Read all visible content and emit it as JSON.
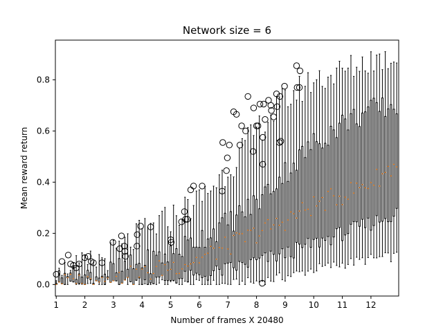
{
  "chart_data": {
    "type": "boxplot",
    "title": "Network size = 6",
    "xlabel": "Number of frames X 20480",
    "ylabel": "Mean reward return",
    "xlim": [
      0.97,
      12.97
    ],
    "ylim": [
      -0.045,
      0.955
    ],
    "xticks": [
      1,
      2,
      3,
      4,
      5,
      6,
      7,
      8,
      9,
      10,
      11,
      12
    ],
    "yticks": [
      0.0,
      0.2,
      0.4,
      0.6,
      0.8
    ],
    "ytick_labels": [
      "0.0",
      "0.2",
      "0.4",
      "0.6",
      "0.8"
    ],
    "box_positions": {
      "start": 1.0,
      "step": 0.1,
      "count": 120
    },
    "grid": false,
    "legend": "none",
    "colors": {
      "box": "#000000",
      "median": "#ff7f0e",
      "outlier": "#000000",
      "background": "#ffffff"
    },
    "whisker_high_profile": {
      "x": [
        1.0,
        2.0,
        3.0,
        4.0,
        5.0,
        6.0,
        7.0,
        8.0,
        9.0,
        10.0,
        11.0,
        12.0,
        12.9
      ],
      "y": [
        0.04,
        0.07,
        0.12,
        0.2,
        0.26,
        0.33,
        0.45,
        0.6,
        0.72,
        0.8,
        0.83,
        0.88,
        0.89
      ]
    },
    "q3_profile": {
      "x": [
        1.0,
        2.0,
        3.0,
        4.0,
        5.0,
        6.0,
        7.0,
        8.0,
        9.0,
        10.0,
        11.0,
        12.0,
        12.9
      ],
      "y": [
        0.02,
        0.03,
        0.05,
        0.08,
        0.12,
        0.18,
        0.24,
        0.32,
        0.44,
        0.55,
        0.63,
        0.68,
        0.7
      ]
    },
    "median_profile": {
      "x": [
        1.0,
        2.0,
        3.0,
        4.0,
        5.0,
        6.0,
        7.0,
        8.0,
        9.0,
        10.0,
        11.0,
        12.0,
        12.9
      ],
      "y": [
        0.005,
        0.01,
        0.02,
        0.04,
        0.07,
        0.1,
        0.15,
        0.2,
        0.25,
        0.31,
        0.35,
        0.4,
        0.47
      ]
    },
    "q1_profile": {
      "x": [
        1.0,
        2.0,
        3.0,
        4.0,
        5.0,
        6.0,
        7.0,
        8.0,
        9.0,
        10.0,
        11.0,
        12.0,
        12.9
      ],
      "y": [
        0.0,
        0.0,
        0.0,
        0.01,
        0.02,
        0.03,
        0.06,
        0.09,
        0.12,
        0.16,
        0.2,
        0.24,
        0.28
      ]
    },
    "whisker_low_profile": {
      "x": [
        1.0,
        2.0,
        3.0,
        4.0,
        5.0,
        6.0,
        7.0,
        8.0,
        9.0,
        10.0,
        11.0,
        12.0,
        12.9
      ],
      "y": [
        0.0,
        0.0,
        0.0,
        0.0,
        0.0,
        0.0,
        0.0,
        0.01,
        0.03,
        0.06,
        0.08,
        0.1,
        0.11
      ]
    },
    "outliers": [
      {
        "x": 1.0,
        "y": 0.04
      },
      {
        "x": 1.2,
        "y": 0.09
      },
      {
        "x": 1.42,
        "y": 0.115
      },
      {
        "x": 1.5,
        "y": 0.08
      },
      {
        "x": 1.6,
        "y": 0.075
      },
      {
        "x": 1.7,
        "y": 0.065
      },
      {
        "x": 1.8,
        "y": 0.08
      },
      {
        "x": 2.0,
        "y": 0.105
      },
      {
        "x": 2.12,
        "y": 0.11
      },
      {
        "x": 2.22,
        "y": 0.09
      },
      {
        "x": 2.3,
        "y": 0.085
      },
      {
        "x": 2.6,
        "y": 0.085
      },
      {
        "x": 2.98,
        "y": 0.165
      },
      {
        "x": 3.22,
        "y": 0.14
      },
      {
        "x": 3.28,
        "y": 0.19
      },
      {
        "x": 3.38,
        "y": 0.15
      },
      {
        "x": 3.4,
        "y": 0.13
      },
      {
        "x": 3.42,
        "y": 0.11
      },
      {
        "x": 3.82,
        "y": 0.15
      },
      {
        "x": 3.83,
        "y": 0.195
      },
      {
        "x": 3.95,
        "y": 0.228
      },
      {
        "x": 4.3,
        "y": 0.225
      },
      {
        "x": 5.0,
        "y": 0.175
      },
      {
        "x": 5.02,
        "y": 0.165
      },
      {
        "x": 5.38,
        "y": 0.245
      },
      {
        "x": 5.48,
        "y": 0.285
      },
      {
        "x": 5.52,
        "y": 0.255
      },
      {
        "x": 5.58,
        "y": 0.255
      },
      {
        "x": 5.7,
        "y": 0.37
      },
      {
        "x": 5.8,
        "y": 0.385
      },
      {
        "x": 6.1,
        "y": 0.385
      },
      {
        "x": 6.8,
        "y": 0.365
      },
      {
        "x": 6.82,
        "y": 0.555
      },
      {
        "x": 6.95,
        "y": 0.445
      },
      {
        "x": 6.98,
        "y": 0.495
      },
      {
        "x": 7.05,
        "y": 0.545
      },
      {
        "x": 7.2,
        "y": 0.675
      },
      {
        "x": 7.3,
        "y": 0.665
      },
      {
        "x": 7.42,
        "y": 0.545
      },
      {
        "x": 7.48,
        "y": 0.62
      },
      {
        "x": 7.62,
        "y": 0.6
      },
      {
        "x": 7.7,
        "y": 0.735
      },
      {
        "x": 7.88,
        "y": 0.52
      },
      {
        "x": 7.9,
        "y": 0.69
      },
      {
        "x": 8.0,
        "y": 0.62
      },
      {
        "x": 8.05,
        "y": 0.62
      },
      {
        "x": 8.12,
        "y": 0.705
      },
      {
        "x": 8.2,
        "y": 0.005
      },
      {
        "x": 8.22,
        "y": 0.47
      },
      {
        "x": 8.22,
        "y": 0.575
      },
      {
        "x": 8.25,
        "y": 0.705
      },
      {
        "x": 8.3,
        "y": 0.645
      },
      {
        "x": 8.42,
        "y": 0.72
      },
      {
        "x": 8.5,
        "y": 0.7
      },
      {
        "x": 8.52,
        "y": 0.68
      },
      {
        "x": 8.6,
        "y": 0.655
      },
      {
        "x": 8.7,
        "y": 0.745
      },
      {
        "x": 8.72,
        "y": 0.695
      },
      {
        "x": 8.8,
        "y": 0.555
      },
      {
        "x": 8.82,
        "y": 0.735
      },
      {
        "x": 8.85,
        "y": 0.56
      },
      {
        "x": 8.98,
        "y": 0.775
      },
      {
        "x": 9.4,
        "y": 0.855
      },
      {
        "x": 9.42,
        "y": 0.77
      },
      {
        "x": 9.5,
        "y": 0.77
      },
      {
        "x": 9.52,
        "y": 0.835
      }
    ]
  }
}
